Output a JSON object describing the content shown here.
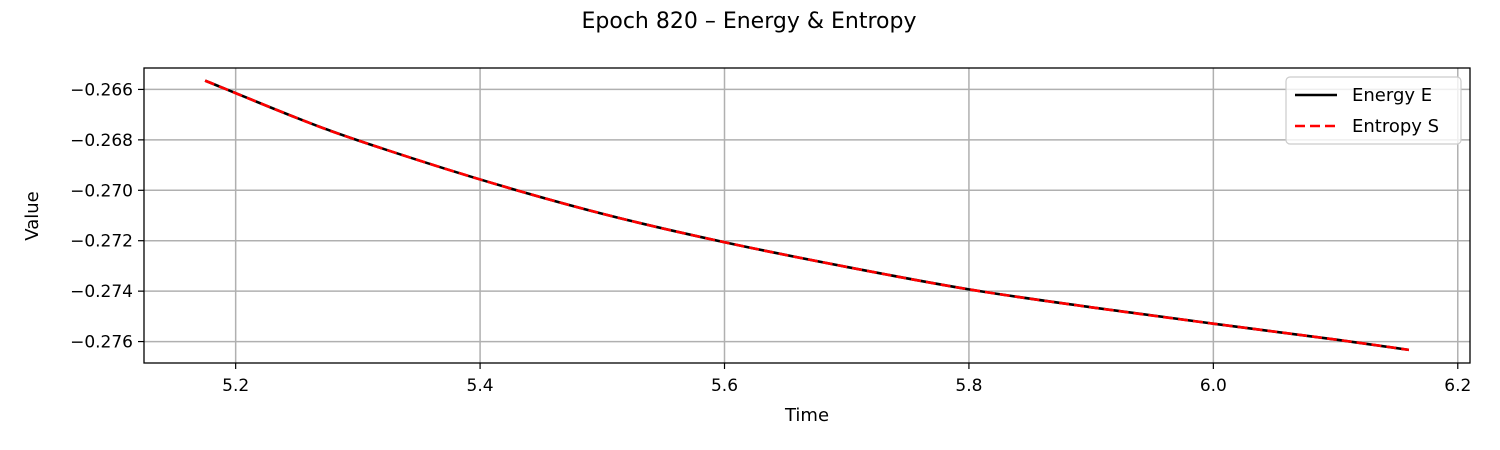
{
  "chart_data": {
    "type": "line",
    "title": "Epoch 820 – Energy & Entropy",
    "xlabel": "Time",
    "ylabel": "Value",
    "xlim": [
      5.125,
      6.21
    ],
    "ylim": [
      -0.27685,
      -0.26515
    ],
    "xticks": [
      5.2,
      5.4,
      5.6,
      5.8,
      6.0,
      6.2
    ],
    "xtick_labels": [
      "5.2",
      "5.4",
      "5.6",
      "5.8",
      "6.0",
      "6.2"
    ],
    "yticks": [
      -0.266,
      -0.268,
      -0.27,
      -0.272,
      -0.274,
      -0.276
    ],
    "ytick_labels": [
      "−0.266",
      "−0.268",
      "−0.270",
      "−0.272",
      "−0.274",
      "−0.276"
    ],
    "grid": true,
    "legend": "top-right",
    "x": [
      5.175,
      5.25,
      5.3,
      5.4,
      5.5,
      5.6,
      5.7,
      5.8,
      5.9,
      6.0,
      6.1,
      6.16
    ],
    "series": [
      {
        "name": "Energy E",
        "color": "#000000",
        "style": "solid",
        "values": [
          -0.26565,
          -0.26713,
          -0.26802,
          -0.26957,
          -0.27093,
          -0.27206,
          -0.27304,
          -0.27393,
          -0.27464,
          -0.27529,
          -0.27592,
          -0.27633
        ]
      },
      {
        "name": "Entropy S",
        "color": "#ff0000",
        "style": "dashed",
        "values": [
          -0.26565,
          -0.26713,
          -0.26802,
          -0.26957,
          -0.27093,
          -0.27206,
          -0.27304,
          -0.27393,
          -0.27464,
          -0.27529,
          -0.27592,
          -0.27633
        ]
      }
    ]
  }
}
